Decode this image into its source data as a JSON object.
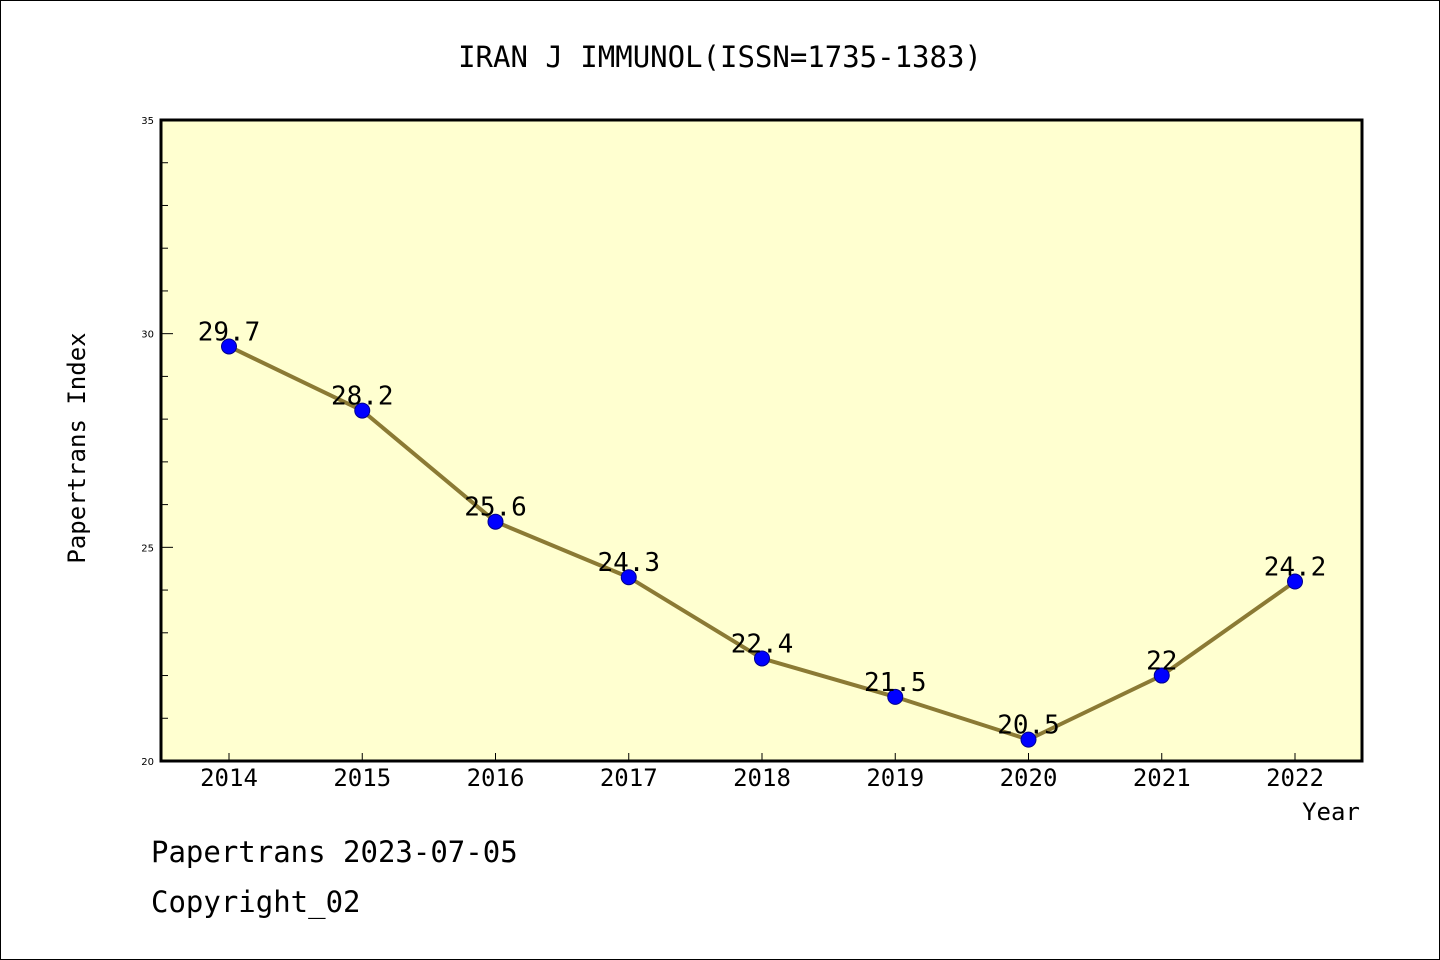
{
  "chart_data": {
    "type": "line",
    "title": "IRAN J IMMUNOL(ISSN=1735-1383)",
    "xlabel": "Year",
    "ylabel": "Papertrans Index",
    "categories": [
      "2014",
      "2015",
      "2016",
      "2017",
      "2018",
      "2019",
      "2020",
      "2021",
      "2022"
    ],
    "values": [
      29.7,
      28.2,
      25.6,
      24.3,
      22.4,
      21.5,
      20.5,
      22,
      24.2
    ],
    "data_labels": [
      "29.7",
      "28.2",
      "25.6",
      "24.3",
      "22.4",
      "21.5",
      "20.5",
      "22",
      "24.2"
    ],
    "ylim": [
      20,
      35
    ],
    "y_ticks": [
      "20",
      "25",
      "30",
      "35"
    ],
    "grid": false,
    "colors": {
      "plot_background": "#ffffd0",
      "line": "#8b7a34",
      "marker": "#0000ff"
    }
  },
  "footer": {
    "date_text": "Papertrans 2023-07-05",
    "copyright_text": "Copyright_02"
  }
}
